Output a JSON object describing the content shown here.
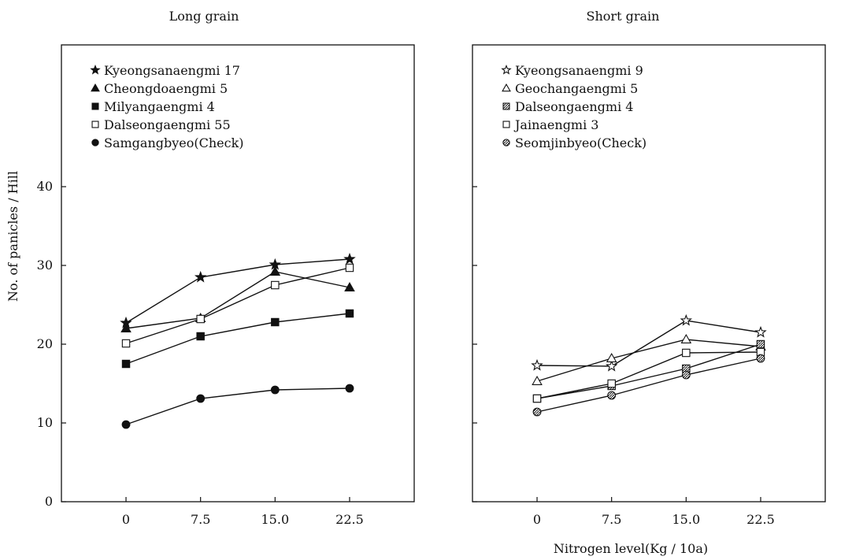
{
  "figure": {
    "ylabel": "No. of panicles / Hill",
    "xlabel": "Nitrogen level(Kg / 10a)"
  },
  "chart_data": [
    {
      "type": "line",
      "title": "Long grain",
      "xlabel": "",
      "ylabel": "No. of panicles / Hill",
      "categories": [
        "0",
        "7.5",
        "15.0",
        "22.5"
      ],
      "x": [
        0,
        7.5,
        15.0,
        22.5
      ],
      "xlim": [
        -6.5,
        29
      ],
      "ylim": [
        0,
        58
      ],
      "yticks": [
        0,
        10,
        20,
        30,
        40
      ],
      "grid": false,
      "legend_position": "top-left",
      "series": [
        {
          "name": "Kyeongsanaengmi 17",
          "marker": "star-filled",
          "values": [
            22.7,
            28.5,
            30.1,
            30.8
          ]
        },
        {
          "name": "Cheongdoaengmi 5",
          "marker": "triangle-filled",
          "values": [
            22.0,
            23.3,
            29.2,
            27.2
          ]
        },
        {
          "name": "Milyangaengmi 4",
          "marker": "square-filled",
          "values": [
            17.5,
            21.0,
            22.8,
            23.9
          ]
        },
        {
          "name": "Dalseongaengmi 55",
          "marker": "square-open",
          "values": [
            20.1,
            23.2,
            27.5,
            29.7
          ]
        },
        {
          "name": "Samgangbyeo(Check)",
          "marker": "circle-filled",
          "values": [
            9.8,
            13.1,
            14.2,
            14.4
          ]
        }
      ]
    },
    {
      "type": "line",
      "title": "Short grain",
      "xlabel": "Nitrogen level(Kg / 10a)",
      "ylabel": "",
      "categories": [
        "0",
        "7.5",
        "15.0",
        "22.5"
      ],
      "x": [
        0,
        7.5,
        15.0,
        22.5
      ],
      "xlim": [
        -6.5,
        29
      ],
      "ylim": [
        0,
        58
      ],
      "yticks": [
        0,
        10,
        20,
        30,
        40
      ],
      "grid": false,
      "legend_position": "top-left",
      "series": [
        {
          "name": "Kyeongsanaengmi 9",
          "marker": "star-open",
          "values": [
            17.3,
            17.2,
            23.0,
            21.5
          ]
        },
        {
          "name": "Geochangaengmi 5",
          "marker": "triangle-open",
          "values": [
            15.3,
            18.2,
            20.6,
            19.7
          ]
        },
        {
          "name": "Dalseongaengmi 4",
          "marker": "square-hatched",
          "values": [
            13.1,
            14.7,
            16.9,
            20.0
          ]
        },
        {
          "name": "Jainaengmi 3",
          "marker": "square-open",
          "values": [
            13.1,
            15.0,
            18.9,
            19.0
          ]
        },
        {
          "name": "Seomjinbyeo(Check)",
          "marker": "circle-hatched",
          "values": [
            11.4,
            13.5,
            16.1,
            18.2
          ]
        }
      ]
    }
  ]
}
